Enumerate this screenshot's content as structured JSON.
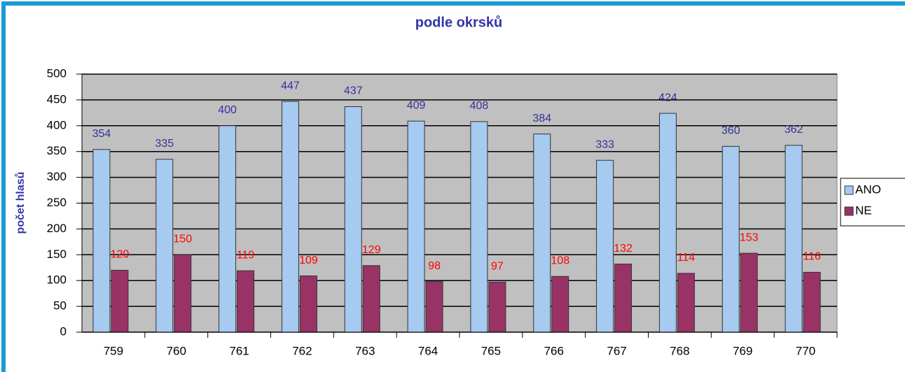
{
  "chart_data": {
    "type": "bar",
    "title": "podle okrsků",
    "y_label": "počet hlasů",
    "categories": [
      "759",
      "760",
      "761",
      "762",
      "763",
      "764",
      "765",
      "766",
      "767",
      "768",
      "769",
      "770"
    ],
    "series": [
      {
        "name": "ANO",
        "color": "#a6caf0",
        "label_color": "#333399",
        "values": [
          354,
          335,
          400,
          447,
          437,
          409,
          408,
          384,
          333,
          424,
          360,
          362
        ]
      },
      {
        "name": "NE",
        "color": "#993366",
        "label_color": "#ff0000",
        "values": [
          120,
          150,
          119,
          109,
          129,
          98,
          97,
          108,
          132,
          114,
          153,
          116
        ]
      }
    ],
    "ylim": [
      0,
      500
    ],
    "yticks": [
      0,
      50,
      100,
      150,
      200,
      250,
      300,
      350,
      400,
      450,
      500
    ],
    "grid": true,
    "legend": "right"
  }
}
